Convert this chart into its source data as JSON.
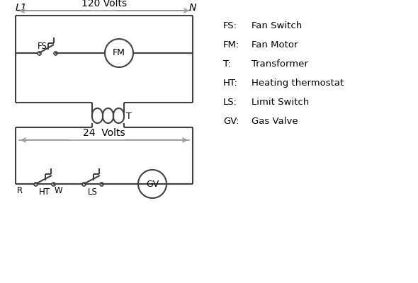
{
  "bg_color": "#ffffff",
  "line_color": "#404040",
  "arrow_color": "#999999",
  "text_color": "#000000",
  "legend": [
    [
      "FS:",
      "Fan Switch"
    ],
    [
      "FM:",
      "Fan Motor"
    ],
    [
      "T:",
      "Transformer"
    ],
    [
      "HT:",
      "Heating thermostat"
    ],
    [
      "LS:",
      "Limit Switch"
    ],
    [
      "GV:",
      "Gas Valve"
    ]
  ],
  "L1_label": "L1",
  "N_label": "N",
  "volts120_label": "120 Volts",
  "volts24_label": "24  Volts",
  "T_label": "T"
}
